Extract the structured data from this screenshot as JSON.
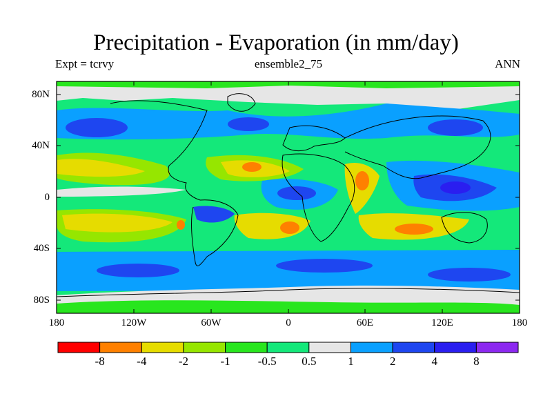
{
  "title": "Precipitation - Evaporation (in mm/day)",
  "left_label": "Expt = tcrvy",
  "center_label": "ensemble2_75",
  "right_label": "ANN",
  "lat_labels": [
    "80N",
    "40N",
    "0",
    "40S",
    "80S"
  ],
  "lon_labels": [
    "180",
    "120W",
    "60W",
    "0",
    "60E",
    "120E",
    "180"
  ],
  "colorbar": {
    "colors": [
      "#ff0000",
      "#ff8000",
      "#e6dc00",
      "#96e600",
      "#28e61e",
      "#14e87a",
      "#e6e6e6",
      "#0aa0ff",
      "#1e46f0",
      "#2a1ef0",
      "#8c28f0"
    ],
    "labels": [
      "-8",
      "-4",
      "-2",
      "-1",
      "-0.5",
      "0.5",
      "1",
      "2",
      "4",
      "8"
    ]
  },
  "map": {
    "lat_range": [
      -90,
      90
    ],
    "lon_range": [
      -180,
      180
    ],
    "background_class_color": "#14e87a"
  }
}
